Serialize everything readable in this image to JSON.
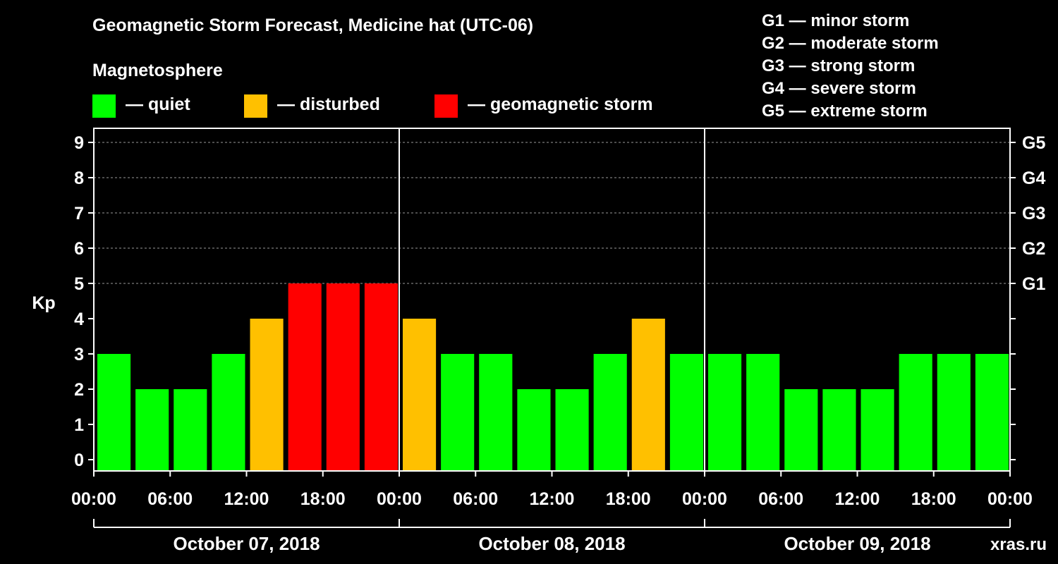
{
  "title": "Geomagnetic Storm Forecast, Medicine hat (UTC-06)",
  "legend": {
    "heading": "Magnetosphere",
    "items": [
      {
        "label": "— quiet",
        "color": "#00ff00"
      },
      {
        "label": "— disturbed",
        "color": "#ffc000"
      },
      {
        "label": "— geomagnetic storm",
        "color": "#ff0000"
      }
    ]
  },
  "g_scale": [
    "G1 — minor storm",
    "G2 — moderate storm",
    "G3 — strong storm",
    "G4 — severe storm",
    "G5 — extreme storm"
  ],
  "watermark": "xras.ru",
  "chart_data": {
    "type": "bar",
    "ylabel": "Kp",
    "ylim": [
      0,
      9
    ],
    "yticks": [
      "0",
      "1",
      "2",
      "3",
      "4",
      "5",
      "6",
      "7",
      "8",
      "9"
    ],
    "right_ticks": [
      {
        "value": 5,
        "label": "G1"
      },
      {
        "value": 6,
        "label": "G2"
      },
      {
        "value": 7,
        "label": "G3"
      },
      {
        "value": 8,
        "label": "G4"
      },
      {
        "value": 9,
        "label": "G5"
      }
    ],
    "xticks": [
      "00:00",
      "06:00",
      "12:00",
      "18:00",
      "00:00",
      "06:00",
      "12:00",
      "18:00",
      "00:00",
      "06:00",
      "12:00",
      "18:00",
      "00:00"
    ],
    "days": [
      "October 07, 2018",
      "October 08, 2018",
      "October 09, 2018"
    ],
    "grid": "horizontal dashed at 5-9",
    "values": [
      3,
      2,
      2,
      3,
      4,
      5,
      5,
      5,
      4,
      3,
      3,
      2,
      2,
      3,
      4,
      3,
      3,
      3,
      2,
      2,
      2,
      3,
      3,
      3
    ],
    "colors": {
      "quiet": "#00ff00",
      "disturbed": "#ffc000",
      "storm": "#ff0000"
    }
  }
}
